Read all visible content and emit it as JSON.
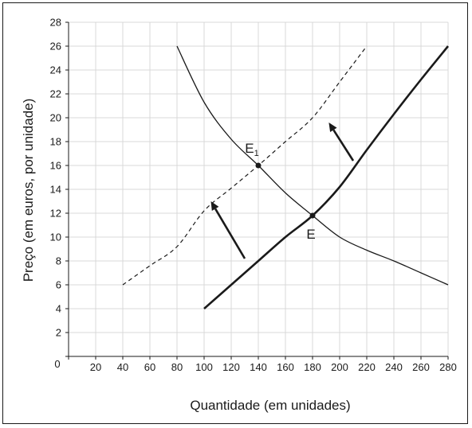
{
  "chart_data": {
    "type": "line",
    "xlabel": "Quantidade (em unidades)",
    "ylabel": "Preço (em euros, por unidade)",
    "xlim": [
      0,
      280
    ],
    "ylim": [
      0,
      28
    ],
    "x_ticks": [
      0,
      20,
      40,
      60,
      80,
      100,
      120,
      140,
      160,
      180,
      200,
      220,
      240,
      260,
      280
    ],
    "y_ticks": [
      0,
      2,
      4,
      6,
      8,
      10,
      12,
      14,
      16,
      18,
      20,
      22,
      24,
      26,
      28
    ],
    "grid": true,
    "series": [
      {
        "style": "solid-thin",
        "color": "#1a1a1a",
        "points": [
          [
            80,
            26
          ],
          [
            100,
            21.3
          ],
          [
            120,
            18.2
          ],
          [
            140,
            16
          ],
          [
            160,
            13.7
          ],
          [
            180,
            11.8
          ],
          [
            200,
            10
          ],
          [
            220,
            8.9
          ],
          [
            240,
            8
          ],
          [
            260,
            7
          ],
          [
            280,
            6
          ]
        ]
      },
      {
        "style": "solid-thick",
        "color": "#1a1a1a",
        "points": [
          [
            100,
            4
          ],
          [
            120,
            6
          ],
          [
            140,
            8
          ],
          [
            160,
            10
          ],
          [
            180,
            11.8
          ],
          [
            200,
            14.2
          ],
          [
            220,
            17.3
          ],
          [
            240,
            20.3
          ],
          [
            260,
            23.2
          ],
          [
            280,
            26
          ]
        ]
      },
      {
        "style": "dashed",
        "color": "#1a1a1a",
        "points": [
          [
            40,
            6
          ],
          [
            60,
            7.6
          ],
          [
            80,
            9.2
          ],
          [
            100,
            12.2
          ],
          [
            120,
            14.1
          ],
          [
            140,
            16
          ],
          [
            160,
            18
          ],
          [
            180,
            20
          ],
          [
            200,
            23
          ],
          [
            220,
            26
          ]
        ]
      }
    ],
    "points": [
      {
        "label": "E",
        "x": 180,
        "y": 11.8
      },
      {
        "label": "E",
        "subscript": "1",
        "x": 140,
        "y": 16
      }
    ],
    "arrows": [
      {
        "from": [
          130,
          8.2
        ],
        "to": [
          105,
          13
        ]
      },
      {
        "from": [
          210,
          16.4
        ],
        "to": [
          192,
          19.6
        ]
      }
    ]
  }
}
